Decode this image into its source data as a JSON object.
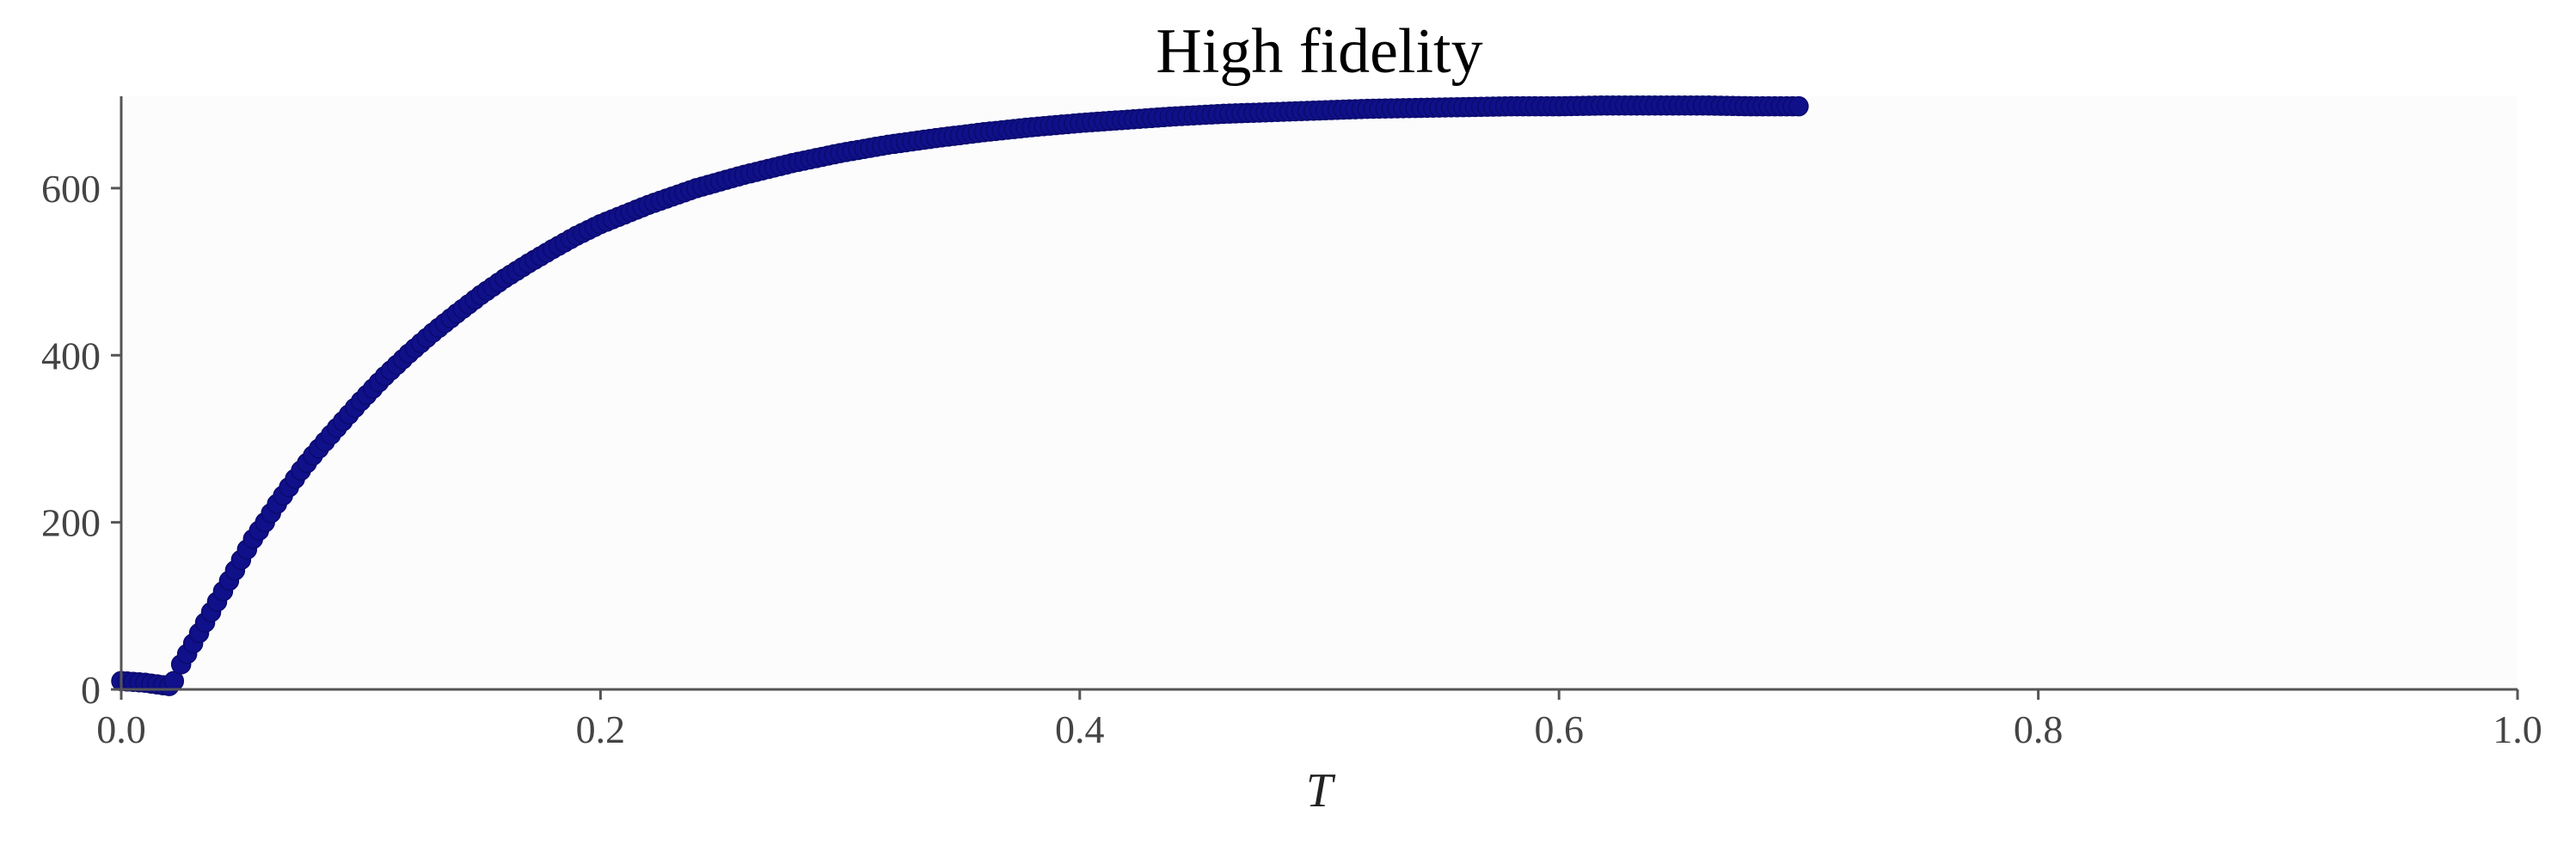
{
  "chart_data": {
    "type": "scatter",
    "title": "High fidelity",
    "xlabel": "T",
    "ylabel": "",
    "xlim": [
      0.0,
      1.0
    ],
    "ylim": [
      0,
      710
    ],
    "xticks": [
      0.0,
      0.2,
      0.4,
      0.6,
      0.8,
      1.0
    ],
    "xtick_labels": [
      "0.0",
      "0.2",
      "0.4",
      "0.6",
      "0.8",
      "1.0"
    ],
    "yticks": [
      0,
      200,
      400,
      600
    ],
    "ytick_labels": [
      "0",
      "200",
      "400",
      "600"
    ],
    "grid": false,
    "background": "#fcfcfd",
    "series": [
      {
        "color": "#10108a",
        "points": [
          [
            0.0,
            10
          ],
          [
            0.005,
            9
          ],
          [
            0.01,
            8
          ],
          [
            0.015,
            6
          ],
          [
            0.02,
            4
          ],
          [
            0.022,
            10
          ],
          [
            0.025,
            30
          ],
          [
            0.03,
            55
          ],
          [
            0.035,
            80
          ],
          [
            0.04,
            105
          ],
          [
            0.045,
            130
          ],
          [
            0.05,
            155
          ],
          [
            0.055,
            180
          ],
          [
            0.06,
            200
          ],
          [
            0.065,
            222
          ],
          [
            0.07,
            242
          ],
          [
            0.075,
            262
          ],
          [
            0.08,
            280
          ],
          [
            0.09,
            313
          ],
          [
            0.1,
            345
          ],
          [
            0.11,
            375
          ],
          [
            0.12,
            402
          ],
          [
            0.13,
            427
          ],
          [
            0.14,
            450
          ],
          [
            0.15,
            472
          ],
          [
            0.16,
            492
          ],
          [
            0.17,
            510
          ],
          [
            0.18,
            527
          ],
          [
            0.19,
            543
          ],
          [
            0.2,
            557
          ],
          [
            0.22,
            580
          ],
          [
            0.24,
            600
          ],
          [
            0.26,
            616
          ],
          [
            0.28,
            630
          ],
          [
            0.3,
            642
          ],
          [
            0.32,
            652
          ],
          [
            0.34,
            660
          ],
          [
            0.36,
            667
          ],
          [
            0.38,
            673
          ],
          [
            0.4,
            678
          ],
          [
            0.42,
            682
          ],
          [
            0.44,
            686
          ],
          [
            0.46,
            689
          ],
          [
            0.48,
            691
          ],
          [
            0.5,
            693
          ],
          [
            0.52,
            695
          ],
          [
            0.54,
            696
          ],
          [
            0.56,
            697
          ],
          [
            0.58,
            698
          ],
          [
            0.6,
            698
          ],
          [
            0.62,
            699
          ],
          [
            0.64,
            699
          ],
          [
            0.66,
            699
          ],
          [
            0.68,
            698
          ],
          [
            0.7,
            698
          ]
        ]
      }
    ]
  }
}
